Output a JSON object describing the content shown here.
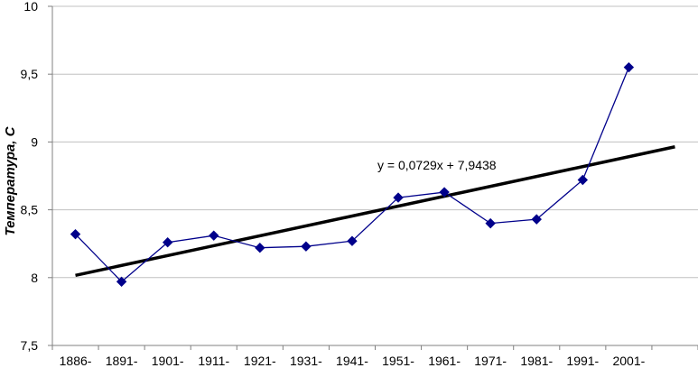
{
  "chart_data": {
    "type": "line",
    "categories": [
      "1886-",
      "1891-",
      "1901-",
      "1911-",
      "1921-",
      "1931-",
      "1941-",
      "1951-",
      "1961-",
      "1971-",
      "1981-",
      "1991-",
      "2001-"
    ],
    "series": [
      {
        "values": [
          8.32,
          7.97,
          8.26,
          8.31,
          8.22,
          8.23,
          8.27,
          8.59,
          8.63,
          8.4,
          8.43,
          8.72,
          9.55
        ],
        "color": "#00008B",
        "marker": "diamond"
      }
    ],
    "trendline": {
      "type": "linear",
      "slope": 0.0729,
      "intercept": 7.9438,
      "x_start": 1,
      "x_end": 14,
      "color": "#000000",
      "equation_label": "y = 0,0729x + 7,9438"
    },
    "ylabel": "Температура, С",
    "xlabel": "",
    "ylim": [
      7.5,
      10
    ],
    "yticks": [
      7.5,
      8,
      8.5,
      9,
      9.5,
      10
    ],
    "ytick_labels": [
      "7,5",
      "8",
      "8,5",
      "9",
      "9,5",
      "10"
    ],
    "grid": "horizontal",
    "legend": "none"
  }
}
